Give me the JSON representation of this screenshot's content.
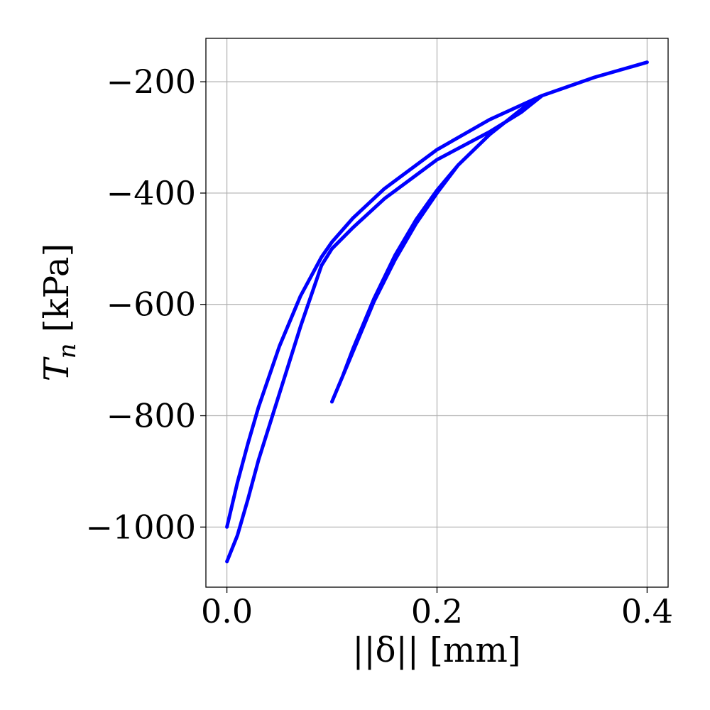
{
  "chart_data": {
    "type": "line",
    "xlabel": "||δ|| [mm]",
    "ylabel": "T_n [kPa]",
    "ylabel_main": "T",
    "ylabel_sub": "n",
    "ylabel_unit": " [kPa]",
    "xlim": [
      -0.02,
      0.42
    ],
    "ylim": [
      -1108,
      -122
    ],
    "xticks": [
      0.0,
      0.2,
      0.4
    ],
    "xtick_labels": [
      "0.0",
      "0.2",
      "0.4"
    ],
    "yticks": [
      -1000,
      -800,
      -600,
      -400,
      -200
    ],
    "ytick_labels": [
      "−1000",
      "−800",
      "−600",
      "−400",
      "−200"
    ],
    "grid": true,
    "legend": "none",
    "series": [
      {
        "color": "#ff0000",
        "style": "dashed",
        "x": [
          0.0,
          0.01,
          0.02,
          0.03,
          0.05,
          0.07,
          0.09,
          0.1,
          0.12,
          0.15,
          0.2,
          0.25,
          0.3,
          0.35,
          0.4,
          0.35,
          0.3,
          0.28,
          0.25,
          0.22,
          0.2,
          0.18,
          0.16,
          0.14,
          0.12,
          0.11,
          0.1,
          0.1,
          0.12,
          0.14,
          0.16,
          0.18,
          0.2,
          0.22,
          0.25,
          0.28,
          0.3,
          0.28,
          0.25,
          0.2,
          0.15,
          0.12,
          0.1,
          0.09,
          0.07,
          0.05,
          0.03,
          0.02,
          0.01,
          0.0
        ],
        "y": [
          -1000,
          -920,
          -850,
          -785,
          -675,
          -585,
          -515,
          -488,
          -445,
          -392,
          -322,
          -268,
          -225,
          -192,
          -165,
          -192,
          -225,
          -250,
          -295,
          -350,
          -395,
          -448,
          -512,
          -590,
          -680,
          -730,
          -775,
          -775,
          -685,
          -595,
          -520,
          -455,
          -400,
          -350,
          -295,
          -250,
          -225,
          -255,
          -290,
          -340,
          -410,
          -462,
          -500,
          -530,
          -640,
          -760,
          -880,
          -950,
          -1015,
          -1062
        ]
      },
      {
        "color": "#0000ff",
        "style": "solid",
        "x": [
          0.0,
          0.01,
          0.02,
          0.03,
          0.05,
          0.07,
          0.09,
          0.1,
          0.12,
          0.15,
          0.2,
          0.25,
          0.3,
          0.35,
          0.4,
          0.35,
          0.3,
          0.28,
          0.25,
          0.22,
          0.2,
          0.18,
          0.16,
          0.14,
          0.12,
          0.11,
          0.1,
          0.1,
          0.12,
          0.14,
          0.16,
          0.18,
          0.2,
          0.22,
          0.25,
          0.28,
          0.3,
          0.28,
          0.25,
          0.2,
          0.15,
          0.12,
          0.1,
          0.09,
          0.07,
          0.05,
          0.03,
          0.02,
          0.01,
          0.0
        ],
        "y": [
          -1000,
          -920,
          -850,
          -785,
          -675,
          -585,
          -515,
          -488,
          -445,
          -392,
          -322,
          -268,
          -225,
          -192,
          -165,
          -192,
          -225,
          -250,
          -295,
          -350,
          -395,
          -448,
          -512,
          -590,
          -680,
          -730,
          -775,
          -775,
          -685,
          -595,
          -520,
          -455,
          -400,
          -350,
          -295,
          -250,
          -225,
          -255,
          -290,
          -340,
          -410,
          -462,
          -500,
          -530,
          -640,
          -760,
          -880,
          -950,
          -1015,
          -1062
        ]
      }
    ]
  }
}
